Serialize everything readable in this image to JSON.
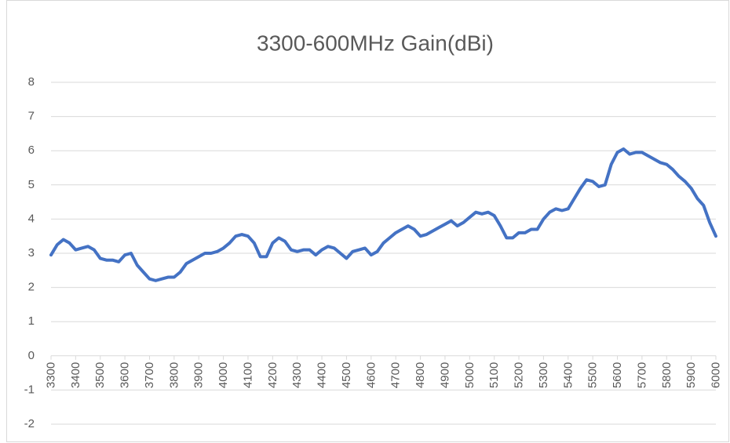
{
  "chart_data": {
    "type": "line",
    "title": "3300-600MHz Gain(dBi)",
    "x": [
      3300,
      3325,
      3350,
      3375,
      3400,
      3425,
      3450,
      3475,
      3500,
      3525,
      3550,
      3575,
      3600,
      3625,
      3650,
      3675,
      3700,
      3725,
      3750,
      3775,
      3800,
      3825,
      3850,
      3875,
      3900,
      3925,
      3950,
      3975,
      4000,
      4025,
      4050,
      4075,
      4100,
      4125,
      4150,
      4175,
      4200,
      4225,
      4250,
      4275,
      4300,
      4325,
      4350,
      4375,
      4400,
      4425,
      4450,
      4475,
      4500,
      4525,
      4550,
      4575,
      4600,
      4625,
      4650,
      4675,
      4700,
      4725,
      4750,
      4775,
      4800,
      4825,
      4850,
      4875,
      4900,
      4925,
      4950,
      4975,
      5000,
      5025,
      5050,
      5075,
      5100,
      5125,
      5150,
      5175,
      5200,
      5225,
      5250,
      5275,
      5300,
      5325,
      5350,
      5375,
      5400,
      5425,
      5450,
      5475,
      5500,
      5525,
      5550,
      5575,
      5600,
      5625,
      5650,
      5675,
      5700,
      5725,
      5750,
      5775,
      5800,
      5825,
      5850,
      5875,
      5900,
      5925,
      5950,
      5975,
      6000
    ],
    "series": [
      {
        "name": "Gain",
        "color": "#4472c4",
        "values": [
          2.95,
          3.25,
          3.4,
          3.3,
          3.1,
          3.15,
          3.2,
          3.1,
          2.85,
          2.8,
          2.8,
          2.75,
          2.95,
          3.0,
          2.65,
          2.45,
          2.25,
          2.2,
          2.25,
          2.3,
          2.3,
          2.45,
          2.7,
          2.8,
          2.9,
          3.0,
          3.0,
          3.05,
          3.15,
          3.3,
          3.5,
          3.55,
          3.5,
          3.3,
          2.9,
          2.9,
          3.3,
          3.45,
          3.35,
          3.1,
          3.05,
          3.1,
          3.1,
          2.95,
          3.1,
          3.2,
          3.15,
          3.0,
          2.85,
          3.05,
          3.1,
          3.15,
          2.95,
          3.05,
          3.3,
          3.45,
          3.6,
          3.7,
          3.8,
          3.7,
          3.5,
          3.55,
          3.65,
          3.75,
          3.85,
          3.95,
          3.8,
          3.9,
          4.05,
          4.2,
          4.15,
          4.2,
          4.1,
          3.8,
          3.45,
          3.45,
          3.6,
          3.6,
          3.7,
          3.7,
          4.0,
          4.2,
          4.3,
          4.25,
          4.3,
          4.6,
          4.9,
          5.15,
          5.1,
          4.95,
          5.0,
          5.6,
          5.95,
          6.05,
          5.9,
          5.95,
          5.95,
          5.85,
          5.75,
          5.65,
          5.6,
          5.45,
          5.25,
          5.1,
          4.9,
          4.6,
          4.4,
          3.9,
          3.5
        ]
      }
    ],
    "xlim": [
      3300,
      6000
    ],
    "xticks": [
      3300,
      3400,
      3500,
      3600,
      3700,
      3800,
      3900,
      4000,
      4100,
      4200,
      4300,
      4400,
      4500,
      4600,
      4700,
      4800,
      4900,
      5000,
      5100,
      5200,
      5300,
      5400,
      5500,
      5600,
      5700,
      5800,
      5900,
      6000
    ],
    "ylim": [
      -2,
      8
    ],
    "yticks": [
      -2,
      -1,
      0,
      1,
      2,
      3,
      4,
      5,
      6,
      7,
      8
    ],
    "grid": true
  }
}
